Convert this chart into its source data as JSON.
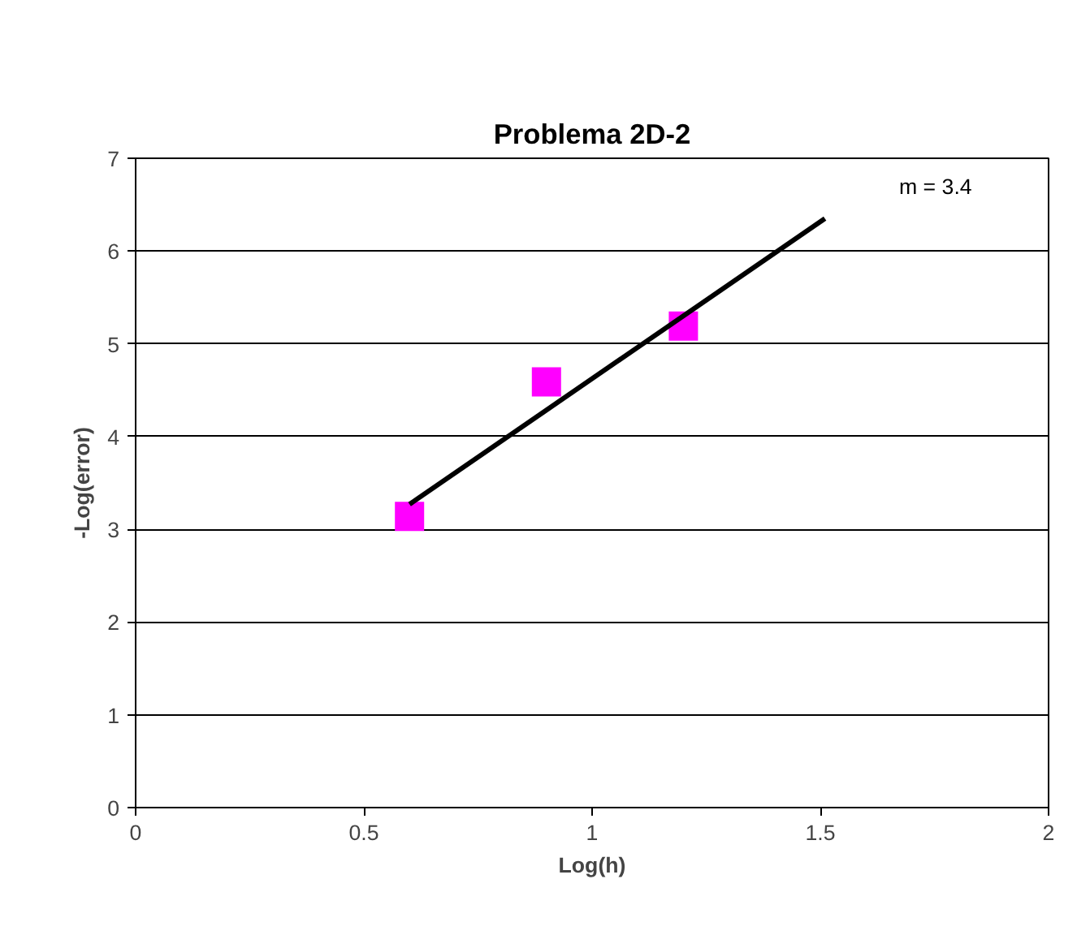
{
  "chart_data": {
    "type": "scatter",
    "title": "Problema 2D-2",
    "xlabel": "Log(h)",
    "ylabel": "-Log(error)",
    "series": [
      {
        "type": "scatter",
        "color": "#ff00ff",
        "marker": "square",
        "x": [
          0.6,
          0.9,
          1.2
        ],
        "values": [
          3.14,
          4.59,
          5.19
        ]
      },
      {
        "type": "line",
        "color": "#000000",
        "marker": "none",
        "line_style": "solid",
        "x": [
          0.6,
          1.51
        ],
        "values": [
          3.27,
          6.35
        ]
      }
    ],
    "annotations": [
      "m = 3.4"
    ],
    "xlim": [
      0,
      2
    ],
    "xticks": [
      0,
      0.5,
      1,
      1.5,
      2
    ],
    "ylim": [
      0,
      7
    ],
    "yticks": [
      0,
      1,
      2,
      3,
      4,
      5,
      6,
      7
    ],
    "grid": "y"
  }
}
